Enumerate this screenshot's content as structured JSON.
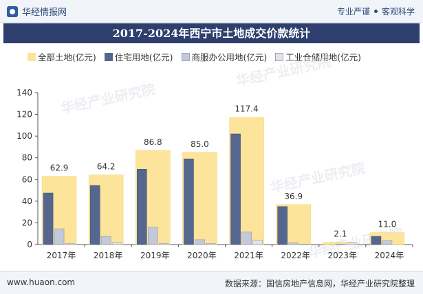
{
  "header": {
    "brand": "华经情报网",
    "slogan_left": "专业严谨",
    "slogan_right": "客观科学"
  },
  "watermark": "华经产业研究院",
  "footer": {
    "site": "www.huaon.com",
    "source": "数据来源：国信房地产信息网，华经产业研究院整理"
  },
  "colors": {
    "total": "#fde49b",
    "residential": "#56678f",
    "commercial": "#c3c9d8",
    "industrial": "#e2e4ea",
    "title_bg": "#2e3f6e"
  },
  "chart_data": {
    "type": "bar",
    "title": "2017-2024年西宁市土地成交价款统计",
    "categories": [
      "2017年",
      "2018年",
      "2019年",
      "2020年",
      "2021年",
      "2022年",
      "2023年",
      "2024年"
    ],
    "series": [
      {
        "name": "全部土地(亿元)",
        "values": [
          62.9,
          64.2,
          86.8,
          85.0,
          117.4,
          36.9,
          2.1,
          11.0
        ],
        "labels": [
          "62.9",
          "64.2",
          "86.8",
          "85.0",
          "117.4",
          "36.9",
          "2.1",
          "11.0"
        ]
      },
      {
        "name": "住宅用地(亿元)",
        "values": [
          47.5,
          54.5,
          69.5,
          79.0,
          102.0,
          35.0,
          0.0,
          7.5
        ]
      },
      {
        "name": "商服办公用地(亿元)",
        "values": [
          14.5,
          7.5,
          16.0,
          4.5,
          11.5,
          1.5,
          0.5,
          3.5
        ]
      },
      {
        "name": "工业仓储用地(亿元)",
        "values": [
          0.8,
          1.8,
          1.0,
          1.0,
          3.8,
          0.4,
          1.5,
          0.0
        ]
      }
    ],
    "ylim": [
      0,
      140
    ],
    "yticks": [
      "0",
      "20",
      "40",
      "60",
      "80",
      "100",
      "120",
      "140"
    ],
    "xlabel": "",
    "ylabel": "",
    "legend": "top",
    "grid": false
  }
}
